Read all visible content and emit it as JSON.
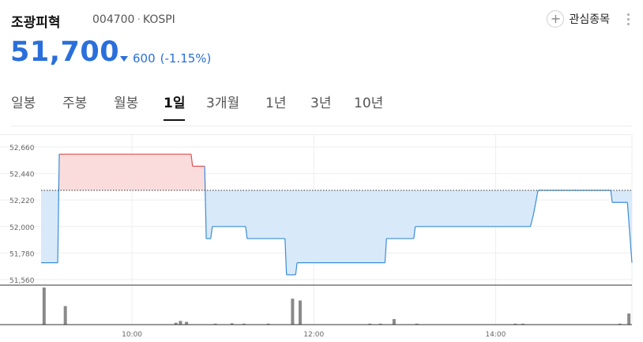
{
  "header": {
    "name": "조광피혁",
    "code": "004700",
    "market": "KOSPI",
    "favorite_label": "관심종목",
    "favorite_icon": "plus-icon",
    "more_icon": "more-vertical-icon"
  },
  "quote": {
    "price": "51,700",
    "direction_icon": "triangle-down-icon",
    "change": "600",
    "change_pct": "(-1.15%)",
    "down_color": "#2a6fdb"
  },
  "tabs": [
    {
      "label": "일봉",
      "active": false
    },
    {
      "label": "주봉",
      "active": false
    },
    {
      "label": "월봉",
      "active": false
    },
    {
      "label": "1일",
      "active": true
    },
    {
      "label": "3개월",
      "active": false
    },
    {
      "label": "1년",
      "active": false
    },
    {
      "label": "3년",
      "active": false
    },
    {
      "label": "10년",
      "active": false
    }
  ],
  "chart_data": {
    "type": "area",
    "y_ticks": [
      "52,660",
      "52,440",
      "52,220",
      "52,000",
      "51,780",
      "51,560"
    ],
    "y_tick_values": [
      52660,
      52440,
      52220,
      52000,
      51780,
      51560
    ],
    "x_ticks": [
      "10:00",
      "12:00",
      "14:00"
    ],
    "ylim": [
      51560,
      52660
    ],
    "x_range": [
      "09:00",
      "15:30"
    ],
    "previous_close": 52300,
    "up_color": "#e05050",
    "down_color": "#3a8ed8",
    "price_series": [
      [
        "09:00",
        51700
      ],
      [
        "09:11",
        51700
      ],
      [
        "09:12",
        52600
      ],
      [
        "09:22",
        52600
      ],
      [
        "10:39",
        52600
      ],
      [
        "10:40",
        52500
      ],
      [
        "10:48",
        52500
      ],
      [
        "10:49",
        51900
      ],
      [
        "10:52",
        51900
      ],
      [
        "10:53",
        52000
      ],
      [
        "11:15",
        52000
      ],
      [
        "11:16",
        51900
      ],
      [
        "11:41",
        51900
      ],
      [
        "11:42",
        51600
      ],
      [
        "11:48",
        51600
      ],
      [
        "11:49",
        51700
      ],
      [
        "12:47",
        51700
      ],
      [
        "12:48",
        51900
      ],
      [
        "13:06",
        51900
      ],
      [
        "13:07",
        52000
      ],
      [
        "14:23",
        52000
      ],
      [
        "14:25",
        52100
      ],
      [
        "14:28",
        52300
      ],
      [
        "15:16",
        52300
      ],
      [
        "15:17",
        52200
      ],
      [
        "15:27",
        52200
      ],
      [
        "15:30",
        51700
      ]
    ],
    "volume_bars": [
      [
        "09:02",
        20
      ],
      [
        "09:16",
        10
      ],
      [
        "10:29",
        1
      ],
      [
        "10:32",
        2
      ],
      [
        "10:36",
        1.5
      ],
      [
        "10:55",
        0.5
      ],
      [
        "11:06",
        0.7
      ],
      [
        "11:14",
        0.5
      ],
      [
        "11:30",
        0.5
      ],
      [
        "11:46",
        14
      ],
      [
        "11:51",
        13
      ],
      [
        "12:37",
        0.5
      ],
      [
        "12:44",
        0.5
      ],
      [
        "12:53",
        3
      ],
      [
        "13:08",
        0.5
      ],
      [
        "14:13",
        0.5
      ],
      [
        "14:18",
        0.5
      ],
      [
        "15:22",
        0.5
      ],
      [
        "15:28",
        6
      ]
    ],
    "grid": true
  }
}
